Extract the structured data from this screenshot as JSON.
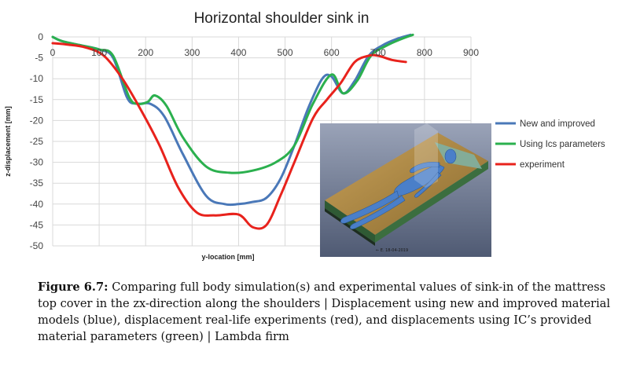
{
  "chart_data": {
    "type": "line",
    "title": "Horizontal shoulder sink in",
    "xlabel": "y-location [mm]",
    "ylabel": "z-displacement [mm]",
    "xlim": [
      0,
      900
    ],
    "ylim": [
      -50,
      0
    ],
    "x_ticks": [
      0,
      100,
      200,
      300,
      400,
      500,
      600,
      700,
      800,
      900
    ],
    "y_ticks": [
      0,
      -5,
      -10,
      -15,
      -20,
      -25,
      -30,
      -35,
      -40,
      -45,
      -50
    ],
    "grid": true,
    "legend_position": "right",
    "series": [
      {
        "name": "New and improved",
        "color": "#4a78b8",
        "x": [
          0,
          20,
          60,
          100,
          130,
          160,
          180,
          210,
          240,
          280,
          330,
          370,
          400,
          430,
          460,
          490,
          520,
          550,
          580,
          600,
          625,
          650,
          680,
          710,
          740,
          770
        ],
        "y": [
          0,
          -1,
          -2,
          -3,
          -5,
          -14.5,
          -16,
          -16,
          -19,
          -28,
          -38,
          -40,
          -40,
          -39.5,
          -38.5,
          -34,
          -26,
          -17,
          -10,
          -9.5,
          -13.5,
          -10.5,
          -4.5,
          -2,
          -0.5,
          0.5
        ]
      },
      {
        "name": "Using Ics parameters",
        "color": "#2bb04e",
        "x": [
          0,
          20,
          60,
          100,
          130,
          165,
          185,
          205,
          220,
          245,
          280,
          330,
          380,
          430,
          480,
          520,
          560,
          600,
          625,
          655,
          685,
          720,
          750,
          775
        ],
        "y": [
          0,
          -1,
          -2,
          -3,
          -4.5,
          -14.5,
          -16,
          -15.5,
          -14,
          -16.5,
          -24,
          -31,
          -32.5,
          -32,
          -30,
          -26,
          -16,
          -9,
          -13.5,
          -10.5,
          -4.5,
          -2,
          -0.5,
          0.5
        ]
      },
      {
        "name": "experiment",
        "color": "#e8221c",
        "x": [
          0,
          30,
          70,
          110,
          150,
          190,
          230,
          270,
          310,
          350,
          400,
          430,
          460,
          490,
          520,
          560,
          590,
          620,
          650,
          680,
          700,
          730,
          760
        ],
        "y": [
          -1.5,
          -1.8,
          -2.5,
          -4.5,
          -10,
          -17.5,
          -26,
          -36,
          -42,
          -42.7,
          -42.5,
          -45.5,
          -45,
          -38,
          -30,
          -19.5,
          -15,
          -11,
          -6,
          -4.5,
          -4.5,
          -5.5,
          -6
        ]
      }
    ]
  },
  "figure": {
    "inset_caption": "← E. 18-04-2019",
    "caption_lead": "Figure 6.7:",
    "caption_text": " Comparing full body simulation(s) and experimental values of sink-in of the mattress top cover in the zx-direction along the shoulders | Displacement using new and improved material models (blue), displacement real-life experiments (red), and displacements using IC’s provided material parameters (green) | Lambda firm"
  }
}
